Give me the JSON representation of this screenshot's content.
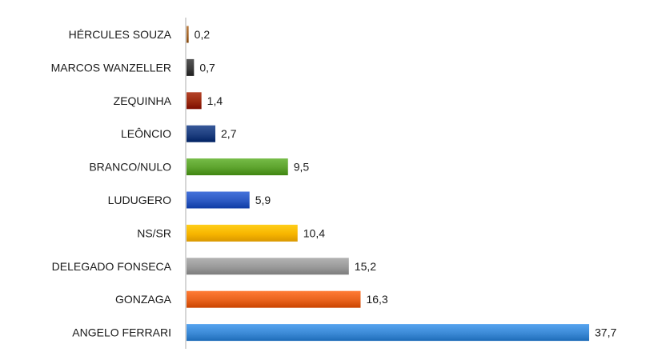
{
  "chart_data": {
    "type": "bar",
    "orientation": "horizontal",
    "title": "",
    "xlabel": "",
    "ylabel": "",
    "grid": false,
    "legend": "none",
    "xlim": [
      0,
      38
    ],
    "categories": [
      "HÉRCULES SOUZA",
      "MARCOS WANZELLER",
      "ZEQUINHA",
      "LEÔNCIO",
      "BRANCO/NULO",
      "LUDUGERO",
      "NS/SR",
      "DELEGADO FONSECA",
      "GONZAGA",
      "ANGELO FERRARI"
    ],
    "values": [
      0.2,
      0.7,
      1.4,
      2.7,
      9.5,
      5.9,
      10.4,
      15.2,
      16.3,
      37.7
    ],
    "value_labels": [
      "0,2",
      "0,7",
      "1,4",
      "2,7",
      "9,5",
      "5,9",
      "10,4",
      "15,2",
      "16,3",
      "37,7"
    ],
    "colors": [
      "#a4662a",
      "#3c3c3c",
      "#9b2a10",
      "#1e3f80",
      "#5da32e",
      "#2c59c2",
      "#f7b500",
      "#9a9a9a",
      "#e8621c",
      "#3c8ad6"
    ]
  }
}
